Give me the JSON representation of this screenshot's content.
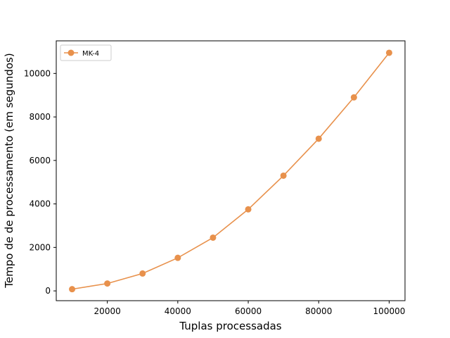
{
  "chart_data": {
    "type": "line",
    "title": "",
    "xlabel": "Tuplas processadas",
    "ylabel": "Tempo de de processamento (em segundos)",
    "xlim": [
      5500,
      104500
    ],
    "ylim": [
      -450,
      11500
    ],
    "xticks": [
      20000,
      40000,
      60000,
      80000,
      100000
    ],
    "yticks": [
      0,
      2000,
      4000,
      6000,
      8000,
      10000
    ],
    "grid": false,
    "legend_position": "top-left",
    "series": [
      {
        "name": "MK-4",
        "color": "#e8914c",
        "marker": "circle",
        "x": [
          10000,
          20000,
          30000,
          40000,
          50000,
          60000,
          70000,
          80000,
          90000,
          100000
        ],
        "y": [
          80,
          340,
          800,
          1520,
          2450,
          3750,
          5300,
          7000,
          8900,
          10950
        ]
      }
    ]
  }
}
